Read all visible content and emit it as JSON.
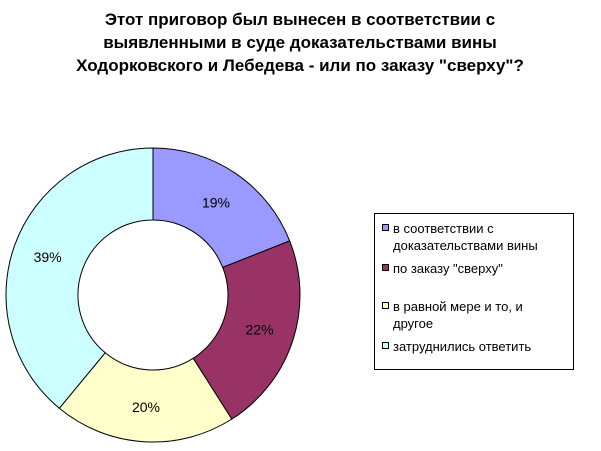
{
  "title": "Этот  приговор  был вынесен в соответствии  с\nвыявленными в суде доказательствами вины\nХодорковского и Лебедева - или по заказу \"сверху\"?",
  "chart_data": {
    "type": "pie",
    "title": "Этот  приговор  был вынесен в соответствии  с\nвыявленными в суде доказательствами вины\nХодорковского и Лебедева - или по заказу \"сверху\"?",
    "categories": [
      "в соответствии  с доказательствами  вины",
      "по заказу  \"сверху\"",
      "в равной мере  и то, и другое",
      "затруднились  ответить"
    ],
    "values": [
      19,
      22,
      20,
      39
    ],
    "value_labels": [
      "19%",
      "22%",
      "20%",
      "39%"
    ],
    "colors": [
      "#9999FF",
      "#993366",
      "#FFFFCC",
      "#CCFFFF"
    ],
    "donut": true,
    "legend_position": "right"
  },
  "legend": {
    "items": [
      {
        "label": "в соответствии  с\nдоказательствами  вины",
        "color": "#9999FF"
      },
      {
        "label": "по заказу  \"сверху\"",
        "color": "#993366"
      },
      {
        "label": "в равной мере  и то, и\nдругое",
        "color": "#FFFFCC"
      },
      {
        "label": "затруднились  ответить",
        "color": "#CCFFFF"
      }
    ]
  }
}
